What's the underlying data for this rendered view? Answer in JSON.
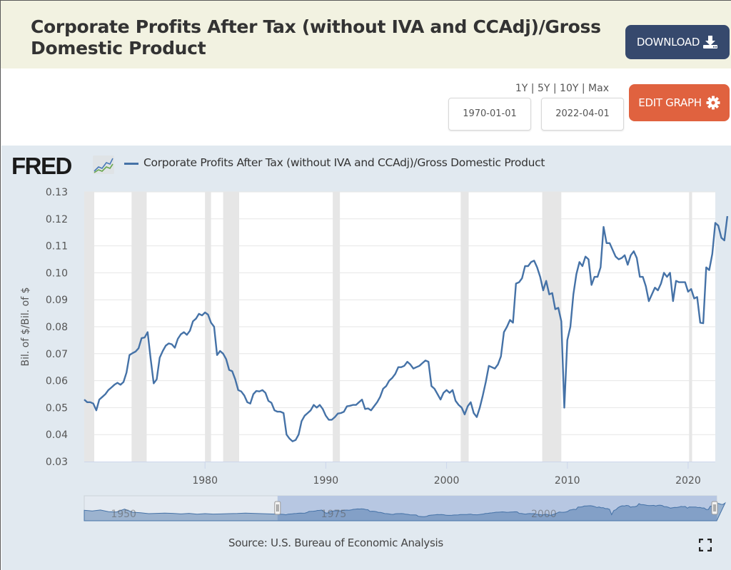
{
  "header": {
    "title": "Corporate Profits After Tax (without IVA and CCAdj)/Gross Domestic Product",
    "download_label": "DOWNLOAD",
    "download_icon": "download-icon"
  },
  "controls": {
    "range_links": [
      "1Y",
      "5Y",
      "10Y",
      "Max"
    ],
    "start_date": "1970-01-01",
    "end_date": "2022-04-01",
    "edit_graph_label": "EDIT GRAPH",
    "edit_graph_icon": "gear-icon"
  },
  "legend": {
    "logo": "FRED",
    "series_name": "Corporate Profits After Tax (without IVA and CCAdj)/Gross Domestic Product"
  },
  "footer": {
    "source": "Source: U.S. Bureau of Economic Analysis",
    "fullscreen_icon": "fullscreen-icon"
  },
  "colors": {
    "series": "#4572a7",
    "recession": "#e6e6e6",
    "download_button": "#36496d",
    "edit_button": "#e0623f",
    "panel_bg": "#e1e9f0",
    "header_bg": "#f2f2e1"
  },
  "chart_data": {
    "type": "line",
    "title": "Corporate Profits After Tax (without IVA and CCAdj)/Gross Domestic Product",
    "xlabel": "",
    "ylabel": "Bil. of $/Bil. of $",
    "xlim": [
      1970.0,
      2022.25
    ],
    "ylim": [
      0.03,
      0.13
    ],
    "y_ticks": [
      "0.03",
      "0.04",
      "0.05",
      "0.06",
      "0.07",
      "0.08",
      "0.09",
      "0.10",
      "0.11",
      "0.12",
      "0.13"
    ],
    "x_ticks": [
      "1980",
      "1990",
      "2000",
      "2010",
      "2020"
    ],
    "grid": true,
    "legend_position": "top-left",
    "recessions": [
      [
        1969.92,
        1970.83
      ],
      [
        1973.92,
        1975.17
      ],
      [
        1980.0,
        1980.5
      ],
      [
        1981.5,
        1982.83
      ],
      [
        1990.58,
        1991.17
      ],
      [
        2001.17,
        2001.83
      ],
      [
        2007.92,
        2009.5
      ],
      [
        2020.08,
        2020.33
      ]
    ],
    "series": [
      {
        "name": "Corporate Profits After Tax (without IVA and CCAdj)/Gross Domestic Product",
        "start": 1970.0,
        "step": 0.25,
        "values": [
          0.053,
          0.052,
          0.052,
          0.0515,
          0.049,
          0.053,
          0.054,
          0.055,
          0.0565,
          0.0575,
          0.0585,
          0.0592,
          0.0585,
          0.0595,
          0.063,
          0.0695,
          0.0702,
          0.0708,
          0.072,
          0.0758,
          0.076,
          0.078,
          0.068,
          0.059,
          0.0605,
          0.0685,
          0.071,
          0.073,
          0.0738,
          0.0735,
          0.0722,
          0.0755,
          0.0772,
          0.078,
          0.077,
          0.0785,
          0.082,
          0.083,
          0.0848,
          0.0842,
          0.0853,
          0.0845,
          0.0815,
          0.08,
          0.0695,
          0.071,
          0.07,
          0.068,
          0.064,
          0.0635,
          0.0605,
          0.0565,
          0.056,
          0.0545,
          0.052,
          0.0515,
          0.055,
          0.0562,
          0.056,
          0.0565,
          0.0555,
          0.0525,
          0.0518,
          0.049,
          0.0485,
          0.0485,
          0.048,
          0.04,
          0.0385,
          0.0375,
          0.038,
          0.04,
          0.045,
          0.047,
          0.048,
          0.049,
          0.051,
          0.05,
          0.051,
          0.0495,
          0.047,
          0.0455,
          0.0455,
          0.0465,
          0.0478,
          0.048,
          0.0485,
          0.0505,
          0.0507,
          0.051,
          0.051,
          0.052,
          0.053,
          0.0495,
          0.0497,
          0.049,
          0.0505,
          0.052,
          0.054,
          0.057,
          0.058,
          0.06,
          0.061,
          0.0625,
          0.065,
          0.065,
          0.0655,
          0.067,
          0.066,
          0.0645,
          0.065,
          0.0655,
          0.0665,
          0.0675,
          0.067,
          0.058,
          0.057,
          0.055,
          0.053,
          0.0555,
          0.0565,
          0.0555,
          0.0565,
          0.0525,
          0.051,
          0.05,
          0.0475,
          0.0505,
          0.052,
          0.048,
          0.0465,
          0.05,
          0.0545,
          0.0595,
          0.0655,
          0.065,
          0.0645,
          0.066,
          0.069,
          0.078,
          0.08,
          0.0825,
          0.0815,
          0.096,
          0.0965,
          0.098,
          0.1025,
          0.1025,
          0.104,
          0.1045,
          0.102,
          0.0985,
          0.0935,
          0.097,
          0.092,
          0.0925,
          0.0865,
          0.087,
          0.082,
          0.05,
          0.075,
          0.08,
          0.092,
          0.0995,
          0.104,
          0.1025,
          0.106,
          0.105,
          0.0955,
          0.0985,
          0.0985,
          0.102,
          0.117,
          0.111,
          0.111,
          0.1085,
          0.106,
          0.105,
          0.1055,
          0.1065,
          0.103,
          0.1065,
          0.108,
          0.1055,
          0.0985,
          0.0985,
          0.095,
          0.0895,
          0.092,
          0.0945,
          0.0935,
          0.096,
          0.1,
          0.0985,
          0.1,
          0.0895,
          0.097,
          0.0965,
          0.0965,
          0.0965,
          0.093,
          0.094,
          0.0905,
          0.091,
          0.0815,
          0.0813,
          0.102,
          0.101,
          0.107,
          0.1185,
          0.1175,
          0.113,
          0.112,
          0.121
        ]
      }
    ],
    "navigator": {
      "tick_labels": [
        "1950",
        "1975",
        "2000"
      ],
      "selected_range": [
        "1970-01-01",
        "2022-04-01"
      ]
    }
  }
}
